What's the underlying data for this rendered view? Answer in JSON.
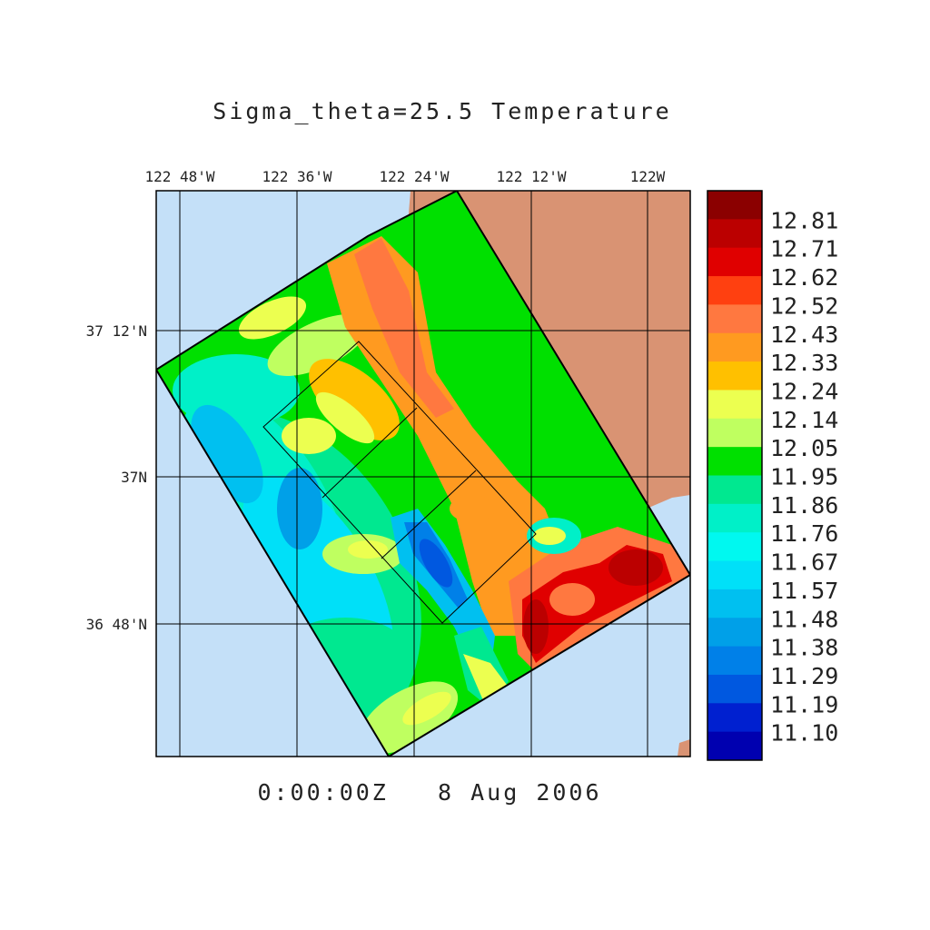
{
  "title": "Sigma_theta=25.5 Temperature",
  "timestamp": "0:00:00Z   8 Aug 2006",
  "axes": {
    "lon_ticks": [
      "122 48'W",
      "122 36'W",
      "122 24'W",
      "122 12'W",
      "122W"
    ],
    "lat_ticks": [
      "37 12'N",
      "37N",
      "36 48'N"
    ]
  },
  "colorbar": {
    "labels": [
      "12.81",
      "12.71",
      "12.62",
      "12.52",
      "12.43",
      "12.33",
      "12.24",
      "12.14",
      "12.05",
      "11.95",
      "11.86",
      "11.76",
      "11.67",
      "11.57",
      "11.48",
      "11.38",
      "11.29",
      "11.19",
      "11.10"
    ],
    "colors": [
      "#8b0000",
      "#bb0000",
      "#e00000",
      "#ff4010",
      "#ff7840",
      "#ff9a20",
      "#ffc000",
      "#ecff50",
      "#bfff60",
      "#00e000",
      "#00e890",
      "#00f0c8",
      "#00f8f0",
      "#00e0f8",
      "#00c0f0",
      "#00a0e8",
      "#0080e8",
      "#0058e0",
      "#0020d0",
      "#0000b0"
    ]
  },
  "colors": {
    "ocean": "#c4e0f8",
    "land": "#d99373",
    "frame": "#000000"
  }
}
